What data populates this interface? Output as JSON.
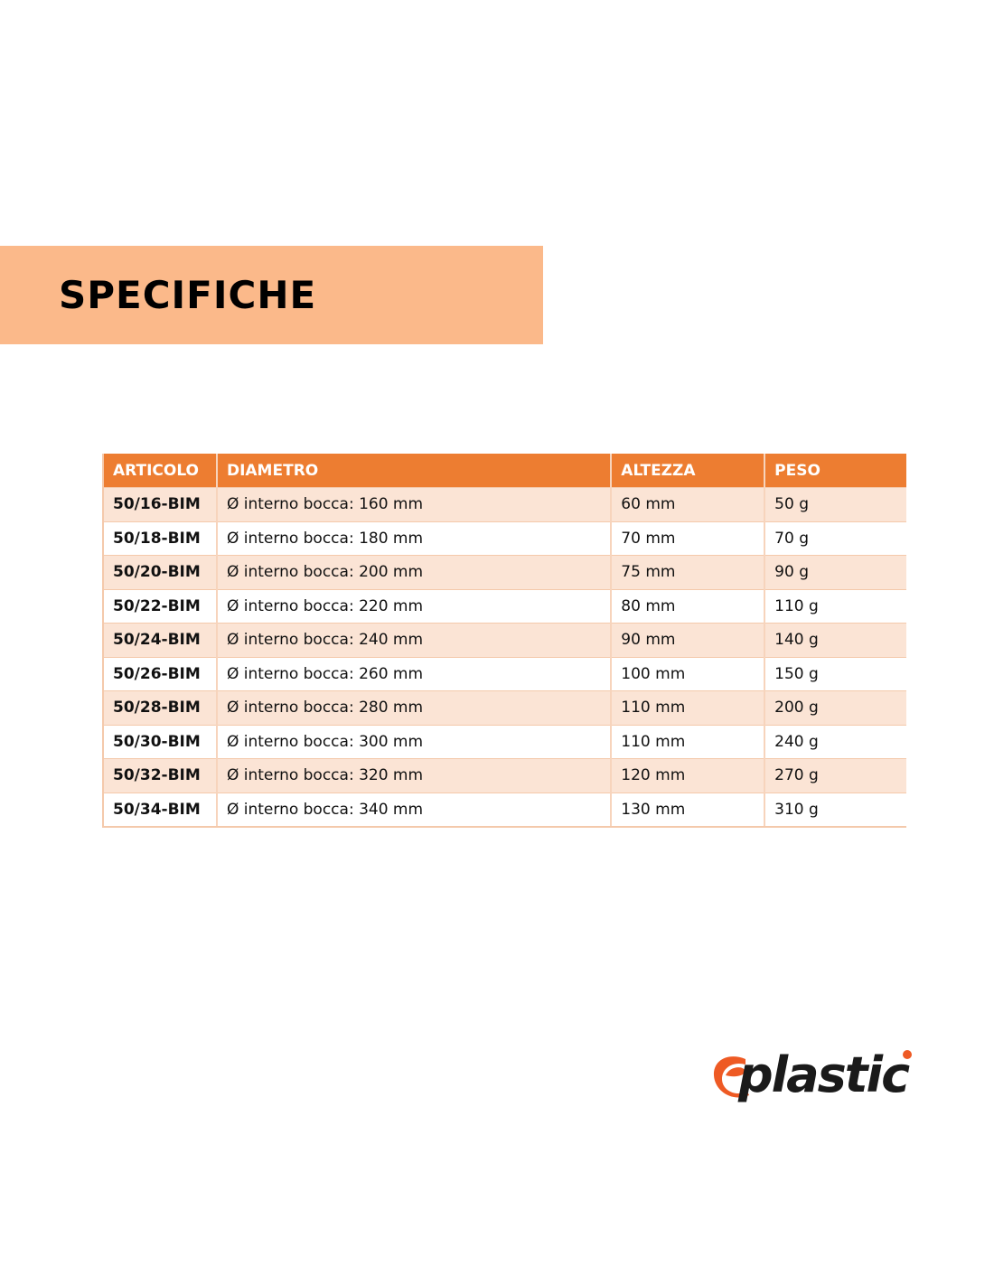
{
  "section_title": "SPECIFICHE",
  "table": {
    "headers": [
      "ARTICOLO",
      "DIAMETRO",
      "ALTEZZA",
      "PESO"
    ],
    "rows": [
      [
        "50/16-BIM",
        "Ø interno bocca: 160 mm",
        "60 mm",
        "50 g"
      ],
      [
        "50/18-BIM",
        "Ø interno bocca: 180 mm",
        "70 mm",
        "70 g"
      ],
      [
        "50/20-BIM",
        "Ø interno bocca: 200 mm",
        "75 mm",
        "90 g"
      ],
      [
        "50/22-BIM",
        "Ø interno bocca: 220 mm",
        "80 mm",
        "110 g"
      ],
      [
        "50/24-BIM",
        "Ø interno bocca: 240 mm",
        "90 mm",
        "140 g"
      ],
      [
        "50/26-BIM",
        "Ø interno bocca: 260 mm",
        "100 mm",
        "150 g"
      ],
      [
        "50/28-BIM",
        "Ø interno bocca: 280 mm",
        "110 mm",
        "200 g"
      ],
      [
        "50/30-BIM",
        "Ø interno bocca: 300 mm",
        "110 mm",
        "240 g"
      ],
      [
        "50/32-BIM",
        "Ø interno bocca: 320 mm",
        "120 mm",
        "270 g"
      ],
      [
        "50/34-BIM",
        "Ø interno bocca: 340 mm",
        "130 mm",
        "310 g"
      ]
    ]
  },
  "logo": {
    "text": "eplastic",
    "accent_color": "#ee5a24",
    "text_color": "#1a1a1a"
  },
  "colors": {
    "banner": "#fbb98a",
    "header": "#ed7d31",
    "row_alt": "#fbe4d5"
  }
}
